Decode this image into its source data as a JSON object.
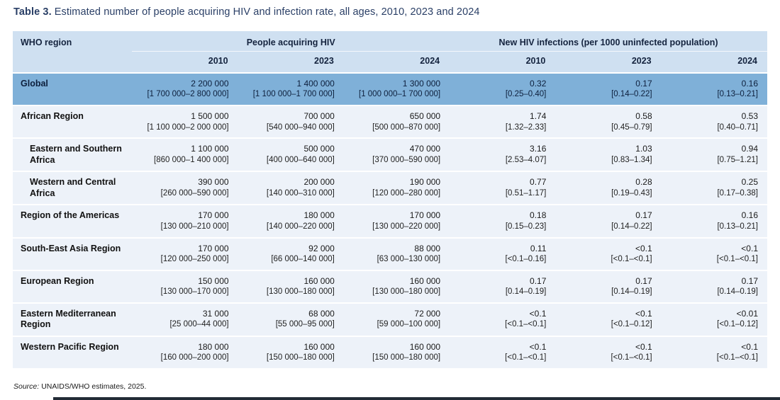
{
  "title": {
    "label": "Table 3.",
    "text": "Estimated number of people acquiring HIV and infection rate, all ages, 2010, 2023 and 2024"
  },
  "table": {
    "col_header": "WHO region",
    "groups": [
      {
        "label": "People acquiring HIV",
        "years": [
          "2010",
          "2023",
          "2024"
        ]
      },
      {
        "label": "New HIV infections (per 1000 uninfected population)",
        "years": [
          "2010",
          "2023",
          "2024"
        ]
      }
    ],
    "rows": [
      {
        "region": "Global",
        "highlight": true,
        "indent": false,
        "values": [
          {
            "v": "2 200 000",
            "r": "[1 700 000–2 800 000]"
          },
          {
            "v": "1 400 000",
            "r": "[1 100 000–1 700 000]"
          },
          {
            "v": "1 300 000",
            "r": "[1 000 000–1 700 000]"
          },
          {
            "v": "0.32",
            "r": "[0.25–0.40]"
          },
          {
            "v": "0.17",
            "r": "[0.14–0.22]"
          },
          {
            "v": "0.16",
            "r": "[0.13–0.21]"
          }
        ]
      },
      {
        "region": "African Region",
        "highlight": false,
        "indent": false,
        "values": [
          {
            "v": "1 500 000",
            "r": "[1 100 000–2 000 000]"
          },
          {
            "v": "700 000",
            "r": "[540 000–940 000]"
          },
          {
            "v": "650 000",
            "r": "[500 000–870 000]"
          },
          {
            "v": "1.74",
            "r": "[1.32–2.33]"
          },
          {
            "v": "0.58",
            "r": "[0.45–0.79]"
          },
          {
            "v": "0.53",
            "r": "[0.40–0.71]"
          }
        ]
      },
      {
        "region": "Eastern and Southern Africa",
        "highlight": false,
        "indent": true,
        "values": [
          {
            "v": "1 100 000",
            "r": "[860 000–1 400 000]"
          },
          {
            "v": "500 000",
            "r": "[400 000–640 000]"
          },
          {
            "v": "470 000",
            "r": "[370 000–590 000]"
          },
          {
            "v": "3.16",
            "r": "[2.53–4.07]"
          },
          {
            "v": "1.03",
            "r": "[0.83–1.34]"
          },
          {
            "v": "0.94",
            "r": "[0.75–1.21]"
          }
        ]
      },
      {
        "region": "Western and Central Africa",
        "highlight": false,
        "indent": true,
        "values": [
          {
            "v": "390 000",
            "r": "[260 000–590 000]"
          },
          {
            "v": "200 000",
            "r": "[140 000–310 000]"
          },
          {
            "v": "190 000",
            "r": "[120 000–280 000]"
          },
          {
            "v": "0.77",
            "r": "[0.51–1.17]"
          },
          {
            "v": "0.28",
            "r": "[0.19–0.43]"
          },
          {
            "v": "0.25",
            "r": "[0.17–0.38]"
          }
        ]
      },
      {
        "region": "Region of the Americas",
        "highlight": false,
        "indent": false,
        "values": [
          {
            "v": "170 000",
            "r": "[130 000–210 000]"
          },
          {
            "v": "180 000",
            "r": "[140 000–220 000]"
          },
          {
            "v": "170 000",
            "r": "[130 000–220 000]"
          },
          {
            "v": "0.18",
            "r": "[0.15–0.23]"
          },
          {
            "v": "0.17",
            "r": "[0.14–0.22]"
          },
          {
            "v": "0.16",
            "r": "[0.13–0.21]"
          }
        ]
      },
      {
        "region": "South-East Asia Region",
        "highlight": false,
        "indent": false,
        "values": [
          {
            "v": "170 000",
            "r": "[120 000–250 000]"
          },
          {
            "v": "92 000",
            "r": "[66 000–140 000]"
          },
          {
            "v": "88 000",
            "r": "[63 000–130 000]"
          },
          {
            "v": "0.11",
            "r": "[<0.1–0.16]"
          },
          {
            "v": "<0.1",
            "r": "[<0.1–<0.1]"
          },
          {
            "v": "<0.1",
            "r": "[<0.1–<0.1]"
          }
        ]
      },
      {
        "region": "European Region",
        "highlight": false,
        "indent": false,
        "values": [
          {
            "v": "150 000",
            "r": "[130 000–170 000]"
          },
          {
            "v": "160 000",
            "r": "[130 000–180 000]"
          },
          {
            "v": "160 000",
            "r": "[130 000–180 000]"
          },
          {
            "v": "0.17",
            "r": "[0.14–0.19]"
          },
          {
            "v": "0.17",
            "r": "[0.14–0.19]"
          },
          {
            "v": "0.17",
            "r": "[0.14–0.19]"
          }
        ]
      },
      {
        "region": "Eastern Mediterranean Region",
        "highlight": false,
        "indent": false,
        "values": [
          {
            "v": "31 000",
            "r": "[25 000–44 000]"
          },
          {
            "v": "68 000",
            "r": "[55 000–95 000]"
          },
          {
            "v": "72 000",
            "r": "[59 000–100 000]"
          },
          {
            "v": "<0.1",
            "r": "[<0.1–<0.1]"
          },
          {
            "v": "<0.1",
            "r": "[<0.1–0.12]"
          },
          {
            "v": "<0.01",
            "r": "[<0.1–0.12]"
          }
        ]
      },
      {
        "region": "Western Pacific Region",
        "highlight": false,
        "indent": false,
        "values": [
          {
            "v": "180 000",
            "r": "[160 000–200 000]"
          },
          {
            "v": "160 000",
            "r": "[150 000–180 000]"
          },
          {
            "v": "160 000",
            "r": "[150 000–180 000]"
          },
          {
            "v": "<0.1",
            "r": "[<0.1–<0.1]"
          },
          {
            "v": "<0.1",
            "r": "[<0.1–<0.1]"
          },
          {
            "v": "<0.1",
            "r": "[<0.1–<0.1]"
          }
        ]
      }
    ]
  },
  "source": {
    "label": "Source:",
    "text": "UNAIDS/WHO estimates, 2025."
  }
}
